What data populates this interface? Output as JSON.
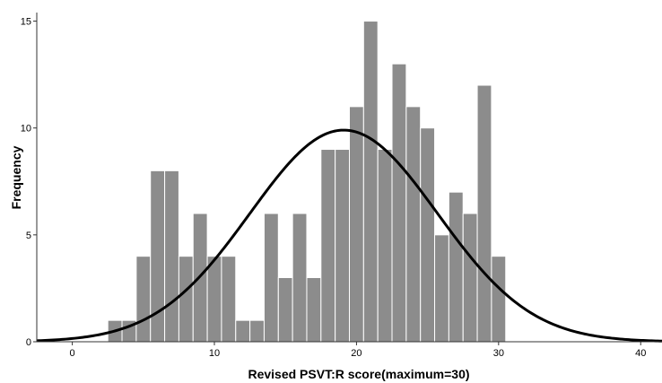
{
  "chart_data": {
    "type": "bar",
    "xlabel": "Revised PSVT:R score(maximum=30)",
    "ylabel": "Frequency",
    "xlim": [
      -2.5,
      41.5
    ],
    "ylim": [
      0,
      15.4
    ],
    "x_ticks": [
      0,
      10,
      20,
      30,
      40
    ],
    "y_ticks": [
      0,
      5,
      10,
      15
    ],
    "bin_width": 1,
    "x": [
      3,
      4,
      5,
      6,
      7,
      8,
      9,
      10,
      11,
      12,
      13,
      14,
      15,
      16,
      17,
      18,
      19,
      20,
      21,
      22,
      23,
      24,
      25,
      26,
      27,
      28,
      29,
      30
    ],
    "values": [
      1,
      1,
      4,
      8,
      8,
      4,
      6,
      4,
      4,
      1,
      1,
      6,
      3,
      6,
      3,
      9,
      9,
      11,
      15,
      9,
      13,
      11,
      10,
      5,
      7,
      6,
      12,
      4
    ],
    "normal_curve": {
      "mean": 19.1,
      "sd": 6.6,
      "peak": 9.9
    },
    "colors": {
      "bar": "#8c8c8c",
      "curve": "#000000"
    },
    "grid": false,
    "legend": "none"
  }
}
